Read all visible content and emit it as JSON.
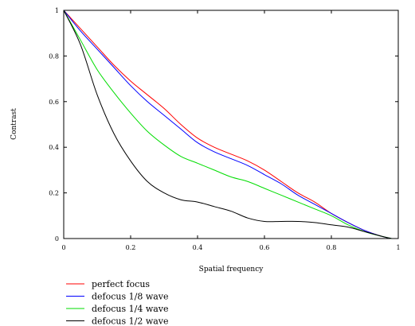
{
  "chart_data": {
    "type": "line",
    "xlabel": "Spatial frequency",
    "ylabel": "Contrast",
    "xlim": [
      0,
      1
    ],
    "ylim": [
      0,
      1
    ],
    "x_ticks": [
      "0",
      "0.2",
      "0.4",
      "0.6",
      "0.8",
      "1"
    ],
    "y_ticks": [
      "0",
      "0.2",
      "0.4",
      "0.6",
      "0.8",
      "1"
    ],
    "grid": false,
    "legend_position": "bottom-left",
    "x": [
      0,
      0.05,
      0.1,
      0.15,
      0.2,
      0.25,
      0.3,
      0.35,
      0.4,
      0.45,
      0.5,
      0.55,
      0.6,
      0.65,
      0.7,
      0.75,
      0.8,
      0.85,
      0.9,
      0.95,
      0.98
    ],
    "series": [
      {
        "name": "perfect focus",
        "color": "#ff0000",
        "values": [
          1.0,
          0.92,
          0.84,
          0.76,
          0.69,
          0.63,
          0.57,
          0.5,
          0.44,
          0.4,
          0.37,
          0.34,
          0.3,
          0.25,
          0.2,
          0.16,
          0.11,
          0.07,
          0.035,
          0.01,
          0.0
        ]
      },
      {
        "name": "defocus 1/8 wave",
        "color": "#0000ff",
        "values": [
          1.0,
          0.91,
          0.83,
          0.75,
          0.67,
          0.6,
          0.54,
          0.48,
          0.42,
          0.38,
          0.35,
          0.32,
          0.28,
          0.24,
          0.19,
          0.15,
          0.11,
          0.07,
          0.035,
          0.01,
          0.0
        ]
      },
      {
        "name": "defocus 1/4 wave",
        "color": "#00dd00",
        "values": [
          1.0,
          0.87,
          0.74,
          0.64,
          0.55,
          0.47,
          0.41,
          0.36,
          0.33,
          0.3,
          0.27,
          0.25,
          0.22,
          0.19,
          0.16,
          0.13,
          0.1,
          0.06,
          0.03,
          0.01,
          0.0
        ]
      },
      {
        "name": "defocus 1/2 wave",
        "color": "#000000",
        "values": [
          1.0,
          0.85,
          0.63,
          0.46,
          0.34,
          0.25,
          0.2,
          0.17,
          0.16,
          0.14,
          0.12,
          0.09,
          0.075,
          0.075,
          0.075,
          0.07,
          0.06,
          0.05,
          0.03,
          0.01,
          0.0
        ]
      }
    ]
  }
}
